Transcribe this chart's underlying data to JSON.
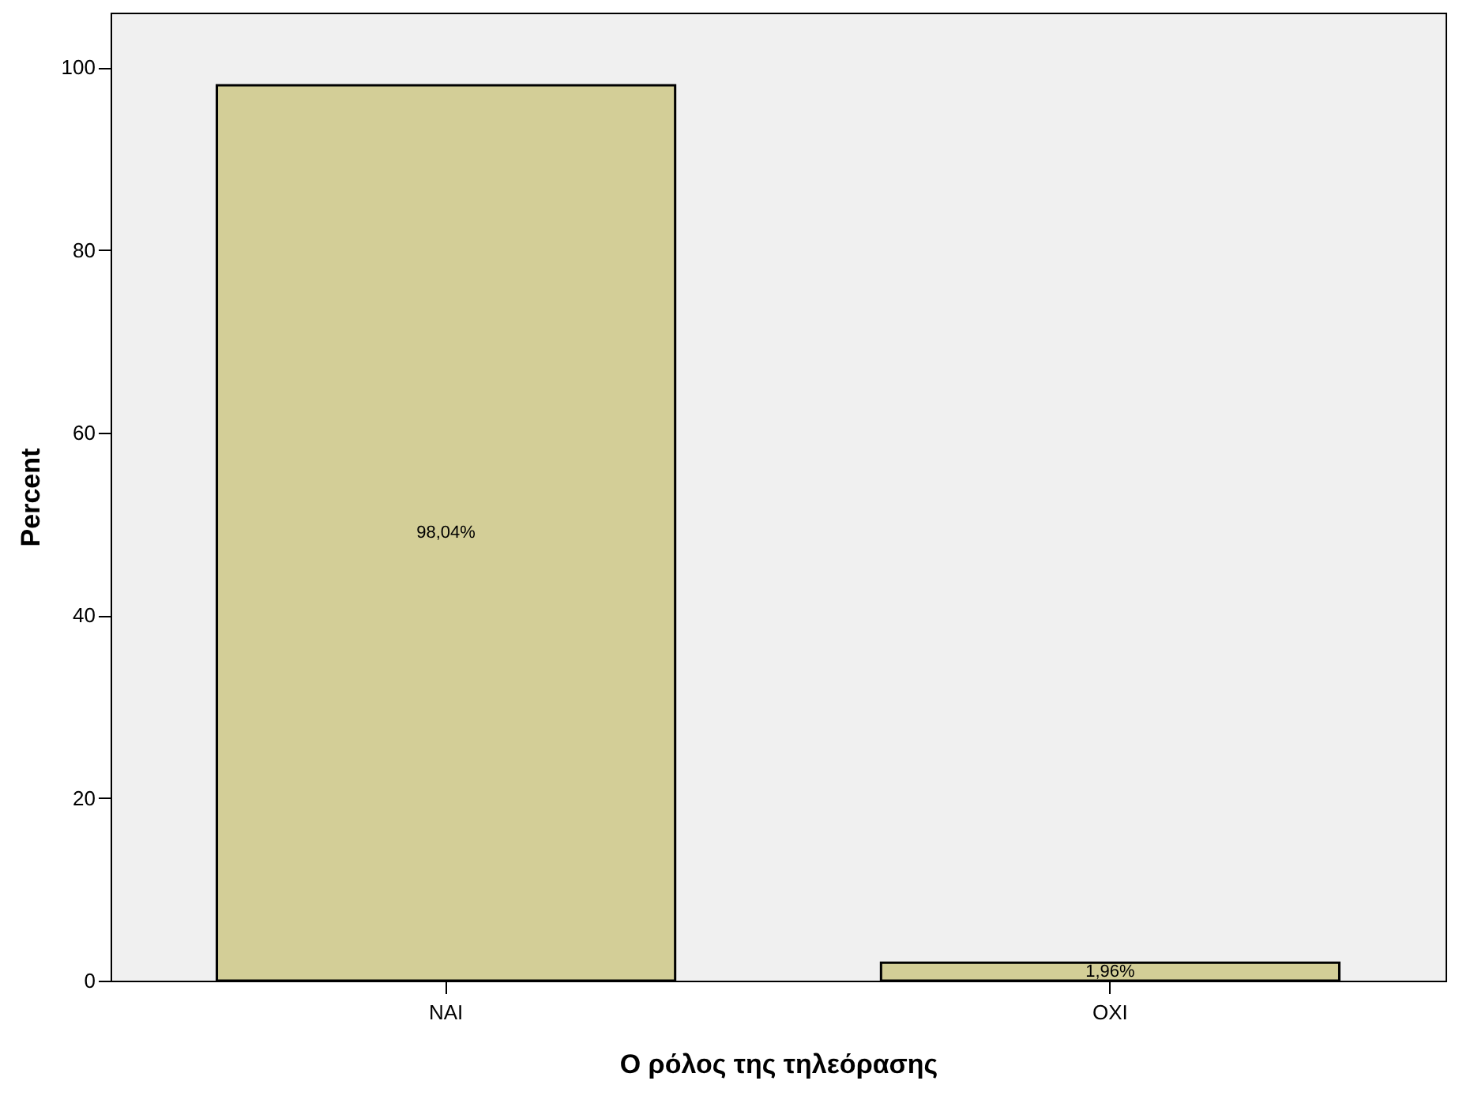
{
  "chart_data": {
    "type": "bar",
    "xlabel": "Ο ρόλος της τηλεόρασης",
    "ylabel": "Percent",
    "categories": [
      "NAI",
      "OXI"
    ],
    "values": [
      98.04,
      1.96
    ],
    "value_labels": [
      "98,04%",
      "1,96%"
    ],
    "color": "#d3ce97",
    "ylim": [
      0,
      106
    ],
    "yticks": [
      0,
      20,
      40,
      60,
      80,
      100
    ],
    "grid": false
  }
}
